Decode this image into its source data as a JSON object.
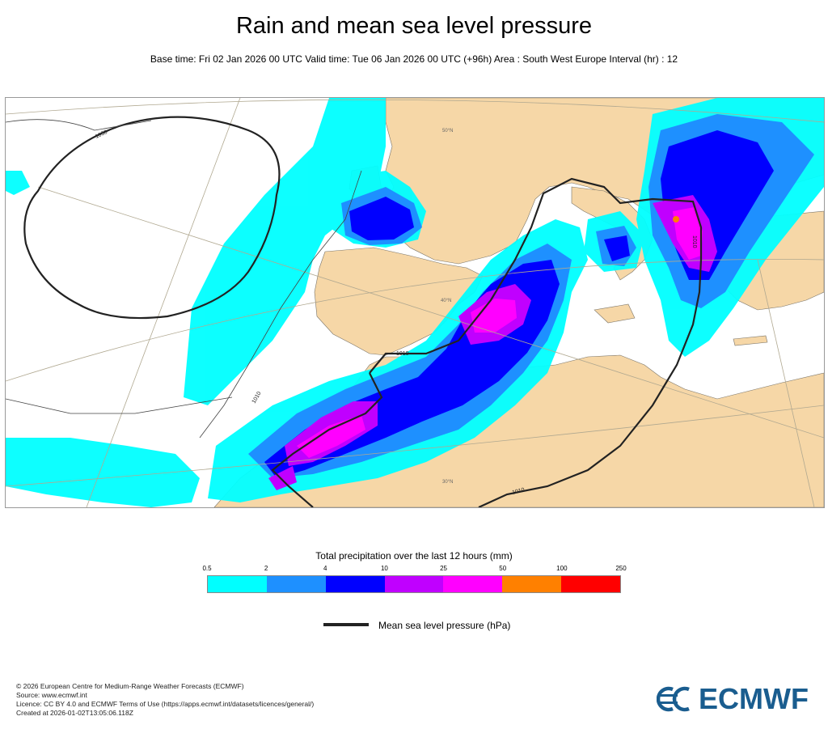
{
  "title": "Rain and mean sea level pressure",
  "subtitle": "Base time: Fri 02 Jan 2026 00 UTC Valid time: Tue 06 Jan 2026 00 UTC (+96h) Area : South West Europe Interval (hr) : 12",
  "map": {
    "isobar_labels": [
      "1030",
      "1010",
      "1010",
      "1010",
      "1010"
    ],
    "latitude_labels": [
      "50°N",
      "40°N",
      "30°N"
    ],
    "colors": {
      "land": "#f6d7a7",
      "sea": "#ffffff",
      "border": "#7a7468",
      "graticule": "#b0a890",
      "isobar": "#222222"
    }
  },
  "legend": {
    "title": "Total precipitation over the last 12 hours (mm)",
    "ticks": [
      "0.5",
      "2",
      "4",
      "10",
      "25",
      "50",
      "100",
      "250"
    ],
    "colors": [
      "#00ffff",
      "#1e90ff",
      "#0000ff",
      "#c000ff",
      "#ff00ff",
      "#ff8000",
      "#ff0000"
    ]
  },
  "pressure_legend": {
    "label": "Mean sea level pressure (hPa)"
  },
  "footer": {
    "lines": [
      "© 2026 European Centre for Medium-Range Weather Forecasts (ECMWF)",
      "Source: www.ecmwf.int",
      "Licence: CC BY 4.0 and ECMWF Terms of Use (https://apps.ecmwf.int/datasets/licences/general/)",
      "Created at 2026-01-02T13:05:06.118Z"
    ]
  },
  "logo": {
    "text": "ECMWF",
    "icon": "ecmwf-logo-icon",
    "color": "#1a5d8f"
  }
}
